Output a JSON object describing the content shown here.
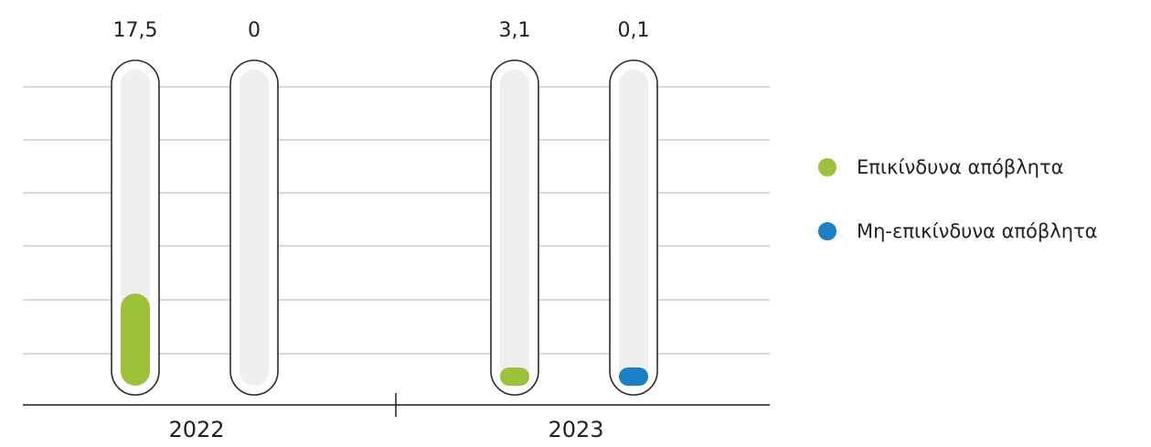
{
  "chart_data": {
    "type": "bar",
    "categories": [
      "2022",
      "2023"
    ],
    "series": [
      {
        "name": "Επικίνδυνα απόβλητα",
        "color": "#9dc13a",
        "values": [
          17.5,
          3.1
        ],
        "value_labels": [
          "17,5",
          "3,1"
        ]
      },
      {
        "name": "Μη-επικίνδυνα απόβλητα",
        "color": "#1a7fc4",
        "values": [
          0,
          0.1
        ],
        "value_labels": [
          "0",
          "0,1"
        ]
      }
    ],
    "title": "",
    "xlabel": "",
    "ylabel": "",
    "ylim": [
      0,
      60
    ],
    "grid": true,
    "legend": "right",
    "track_color": "#efefef",
    "capsule_outline_color": "#2b2b2b",
    "gridline_color": "#b5b5b5"
  }
}
